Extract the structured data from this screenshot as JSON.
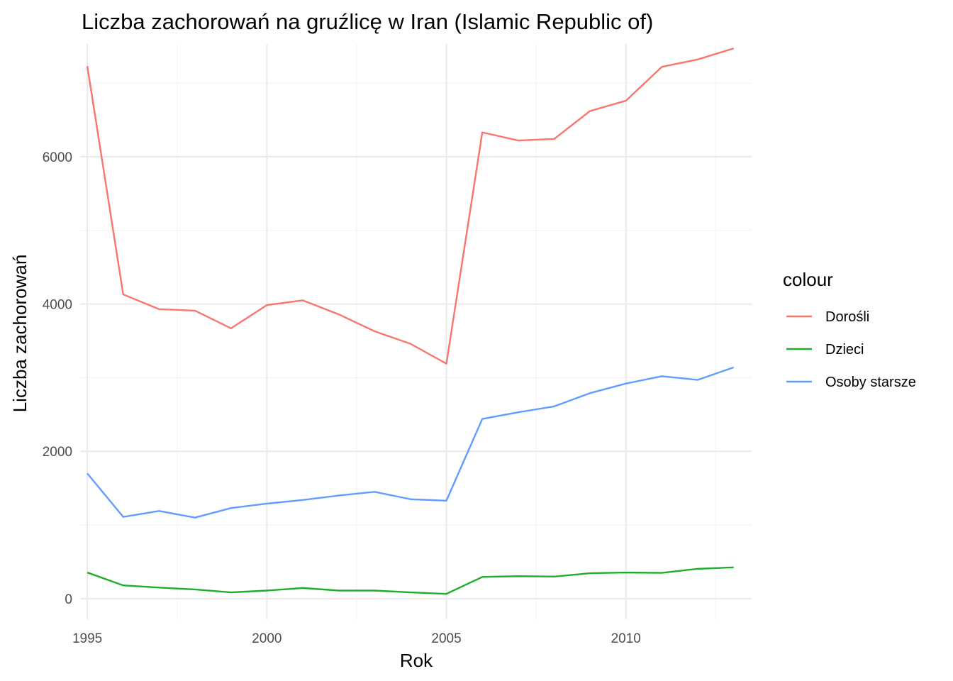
{
  "chart_data": {
    "type": "line",
    "title": "Liczba zachorowań na gruźlicę w Iran (Islamic Republic of)",
    "xlabel": "Rok",
    "ylabel": "Liczba zachorowań",
    "xlim": [
      1994.8,
      2013.5
    ],
    "ylim": [
      -280,
      7530
    ],
    "x_ticks": [
      1995,
      2000,
      2005,
      2010
    ],
    "y_ticks": [
      0,
      2000,
      4000,
      6000
    ],
    "grid": true,
    "legend": {
      "title": "colour",
      "position": "right"
    },
    "x": [
      1995,
      1996,
      1997,
      1998,
      1999,
      2000,
      2001,
      2002,
      2003,
      2004,
      2005,
      2006,
      2007,
      2008,
      2009,
      2010,
      2011,
      2012,
      2013
    ],
    "series": [
      {
        "name": "Dorośli",
        "color": "#F8766D",
        "values": [
          7230,
          4130,
          3930,
          3910,
          3670,
          3985,
          4050,
          3860,
          3630,
          3460,
          3190,
          6330,
          6220,
          6240,
          6620,
          6760,
          7220,
          7320,
          7470
        ]
      },
      {
        "name": "Dzieci",
        "color": "#1FAE2C",
        "values": [
          355,
          180,
          150,
          125,
          85,
          110,
          145,
          110,
          110,
          85,
          65,
          295,
          305,
          300,
          345,
          355,
          350,
          405,
          425
        ]
      },
      {
        "name": "Osoby starsze",
        "color": "#619CFF",
        "values": [
          1700,
          1110,
          1190,
          1100,
          1230,
          1290,
          1340,
          1400,
          1450,
          1350,
          1330,
          2440,
          2530,
          2610,
          2790,
          2920,
          3020,
          2970,
          3140
        ]
      }
    ]
  }
}
